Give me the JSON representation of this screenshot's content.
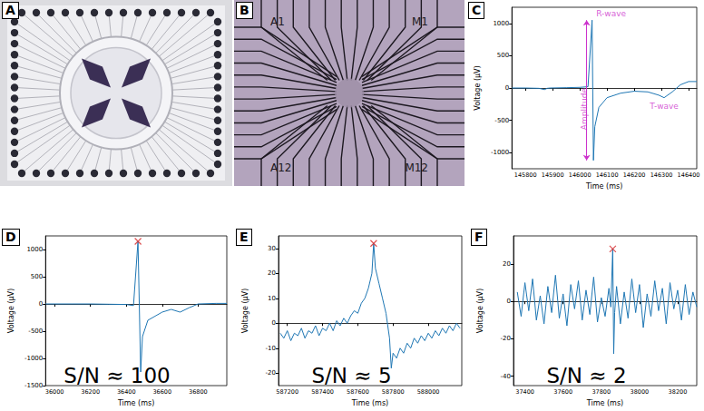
{
  "panels": [
    {
      "label": "A",
      "type": "photo"
    },
    {
      "label": "B",
      "type": "photo",
      "texts": [
        "A1",
        "M1",
        "A12",
        "M12"
      ]
    }
  ],
  "chart_data": [
    {
      "label": "C",
      "type": "line",
      "x_label": "Time (ms)",
      "y_label": "Voltage (μV)",
      "xlim": [
        145750,
        146430
      ],
      "xticks": [
        145800,
        145900,
        146000,
        146100,
        146200,
        146300,
        146400
      ],
      "ylim": [
        -1250,
        1250
      ],
      "yticks": [
        -1000,
        -500,
        0,
        500,
        1000
      ],
      "grid": false,
      "series": [
        {
          "color": "#1f77b4",
          "x": [
            145750,
            145800,
            145850,
            145870,
            145880,
            145890,
            145950,
            146000,
            146030,
            146045,
            146050,
            146055,
            146070,
            146100,
            146150,
            146200,
            146250,
            146290,
            146310,
            146340,
            146370,
            146400,
            146430
          ],
          "values": [
            0,
            0,
            -5,
            -25,
            -5,
            0,
            5,
            10,
            20,
            1050,
            -1120,
            -600,
            -300,
            -150,
            -80,
            -50,
            -60,
            -110,
            -150,
            -60,
            50,
            100,
            100
          ]
        }
      ],
      "annotations": [
        {
          "text": "R-wave",
          "x": 146050,
          "y": 1150,
          "color": "#cc33cc"
        },
        {
          "text": "Amplitude",
          "x": 146025,
          "y": 0,
          "y_range": [
            -1120,
            1050
          ],
          "color": "#cc33cc"
        },
        {
          "text": "T-wave",
          "x": 146310,
          "y": -170,
          "color": "#cc33cc"
        }
      ]
    },
    {
      "label": "D",
      "type": "line",
      "x_label": "Time (ms)",
      "y_label": "Voltage (μV)",
      "note": "S/N ≈ 100",
      "xlim": [
        35950,
        36960
      ],
      "xticks": [
        36000,
        36200,
        36400,
        36600,
        36800
      ],
      "ylim": [
        -1500,
        1250
      ],
      "yticks": [
        -1500,
        -1000,
        -500,
        0,
        500,
        1000
      ],
      "grid": false,
      "series": [
        {
          "color": "#1f77b4",
          "x": [
            35950,
            36000,
            36100,
            36200,
            36300,
            36400,
            36440,
            36465,
            36480,
            36490,
            36520,
            36600,
            36650,
            36700,
            36750,
            36800,
            36900,
            36960
          ],
          "values": [
            0,
            0,
            0,
            0,
            -5,
            -10,
            -30,
            1150,
            -1250,
            -600,
            -300,
            -150,
            -100,
            -150,
            -70,
            0,
            10,
            10
          ]
        },
        {
          "type": "scatter",
          "marker": "x",
          "color": "#d62728",
          "x": [
            36465
          ],
          "values": [
            1150
          ]
        }
      ]
    },
    {
      "label": "E",
      "type": "line",
      "x_label": "Time (ms)",
      "y_label": "Voltage (μV)",
      "note": "S/N ≈ 5",
      "xlim": [
        587150,
        588190
      ],
      "xticks": [
        587200,
        587400,
        587600,
        587800,
        588000
      ],
      "ylim": [
        -25,
        35
      ],
      "yticks": [
        -20,
        -10,
        0,
        10,
        20,
        30
      ],
      "grid": false,
      "series": [
        {
          "color": "#1f77b4",
          "x": [
            587160,
            587180,
            587200,
            587220,
            587240,
            587260,
            587280,
            587300,
            587320,
            587340,
            587360,
            587380,
            587400,
            587420,
            587440,
            587460,
            587480,
            587500,
            587520,
            587540,
            587560,
            587580,
            587600,
            587620,
            587640,
            587660,
            587680,
            587690,
            587700,
            587720,
            587740,
            587760,
            587780,
            587790,
            587800,
            587820,
            587840,
            587860,
            587880,
            587900,
            587920,
            587940,
            587960,
            587980,
            588000,
            588020,
            588040,
            588060,
            588080,
            588100,
            588120,
            588140,
            588160,
            588180
          ],
          "values": [
            -4,
            -6,
            -3,
            -7,
            -4,
            -5,
            -2,
            -6,
            -3,
            -4,
            -1,
            -5,
            -2,
            -3,
            0,
            -3,
            1,
            -1,
            2,
            0,
            3,
            5,
            4,
            8,
            10,
            14,
            20,
            32,
            22,
            16,
            10,
            4,
            -6,
            -18,
            -12,
            -14,
            -10,
            -12,
            -8,
            -10,
            -6,
            -8,
            -5,
            -7,
            -4,
            -6,
            -3,
            -5,
            -2,
            -4,
            -1,
            -3,
            0,
            -2
          ]
        },
        {
          "type": "scatter",
          "marker": "x",
          "color": "#d62728",
          "x": [
            587690
          ],
          "values": [
            32
          ]
        }
      ]
    },
    {
      "label": "F",
      "type": "line",
      "x_label": "Time (ms)",
      "y_label": "Voltage (μV)",
      "note": "S/N ≈ 2",
      "xlim": [
        37340,
        38300
      ],
      "xticks": [
        37400,
        37600,
        37800,
        38000,
        38200
      ],
      "ylim": [
        -45,
        35
      ],
      "yticks": [
        -40,
        -20,
        0,
        20
      ],
      "grid": false,
      "series": [
        {
          "color": "#1f77b4",
          "x": [
            37360,
            37380,
            37400,
            37420,
            37440,
            37460,
            37480,
            37500,
            37520,
            37540,
            37560,
            37580,
            37600,
            37620,
            37640,
            37660,
            37680,
            37700,
            37720,
            37740,
            37760,
            37780,
            37800,
            37820,
            37840,
            37850,
            37860,
            37865,
            37870,
            37880,
            37900,
            37920,
            37940,
            37960,
            37980,
            38000,
            38020,
            38040,
            38060,
            38080,
            38100,
            38120,
            38140,
            38160,
            38180,
            38200,
            38220,
            38240,
            38260,
            38280,
            38300
          ],
          "values": [
            5,
            -8,
            10,
            -5,
            12,
            -10,
            3,
            -12,
            8,
            -6,
            14,
            -9,
            4,
            -13,
            9,
            -4,
            11,
            -10,
            6,
            -7,
            13,
            -11,
            2,
            -8,
            7,
            -3,
            28,
            -28,
            -6,
            8,
            -12,
            5,
            -9,
            12,
            -6,
            9,
            -14,
            4,
            -8,
            11,
            -5,
            7,
            -12,
            10,
            -4,
            6,
            -10,
            9,
            -7,
            5,
            -3
          ]
        },
        {
          "type": "scatter",
          "marker": "x",
          "color": "#d62728",
          "x": [
            37860
          ],
          "values": [
            28
          ]
        }
      ]
    }
  ]
}
